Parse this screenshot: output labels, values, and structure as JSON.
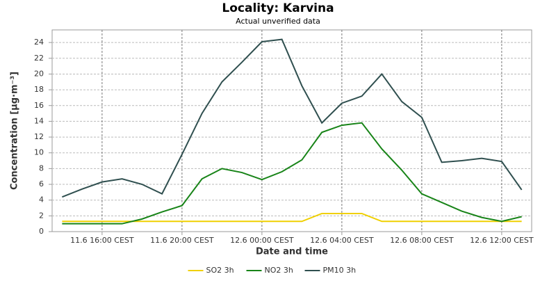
{
  "chart_data": {
    "type": "line",
    "title": "Locality: Karvina",
    "subtitle": "Actual unverified data",
    "x_label": "Date and time",
    "y_label": "Concentration [µg·m⁻³]",
    "categories": [
      null,
      null,
      "11.6 16:00 CEST",
      null,
      null,
      null,
      "11.6 20:00 CEST",
      null,
      null,
      null,
      "12.6 00:00 CEST",
      null,
      null,
      null,
      "12.6 04:00 CEST",
      null,
      null,
      null,
      "12.6 08:00 CEST",
      null,
      null,
      null,
      "12.6 12:00 CEST",
      null
    ],
    "series": [
      {
        "name": "SO2 3h",
        "color": "#f0d000",
        "values": [
          1.3,
          1.3,
          1.3,
          1.3,
          1.3,
          1.3,
          1.3,
          1.3,
          1.3,
          1.3,
          1.3,
          1.3,
          1.3,
          2.3,
          2.3,
          2.3,
          1.3,
          1.3,
          1.3,
          1.3,
          1.3,
          1.3,
          1.3,
          1.3
        ]
      },
      {
        "name": "NO2 3h",
        "color": "#188418",
        "values": [
          1.0,
          1.0,
          1.0,
          1.0,
          1.6,
          2.5,
          3.3,
          6.7,
          8.0,
          7.5,
          6.6,
          7.6,
          9.1,
          12.6,
          13.5,
          13.8,
          10.5,
          7.8,
          4.8,
          3.7,
          2.6,
          1.8,
          1.3,
          1.9
        ]
      },
      {
        "name": "PM10 3h",
        "color": "#2f4f4f",
        "values": [
          4.4,
          5.4,
          6.3,
          6.7,
          6.0,
          4.8,
          9.8,
          15.0,
          19.0,
          21.5,
          24.1,
          24.4,
          18.5,
          13.8,
          16.3,
          17.2,
          20.0,
          16.5,
          14.5,
          8.8,
          9.0,
          9.3,
          8.9,
          5.3
        ]
      }
    ],
    "ylim": [
      0,
      25.6
    ],
    "yticks": [
      0,
      2,
      4,
      6,
      8,
      10,
      12,
      14,
      16,
      18,
      20,
      22,
      24
    ],
    "grid": true,
    "legend": "bottom"
  }
}
